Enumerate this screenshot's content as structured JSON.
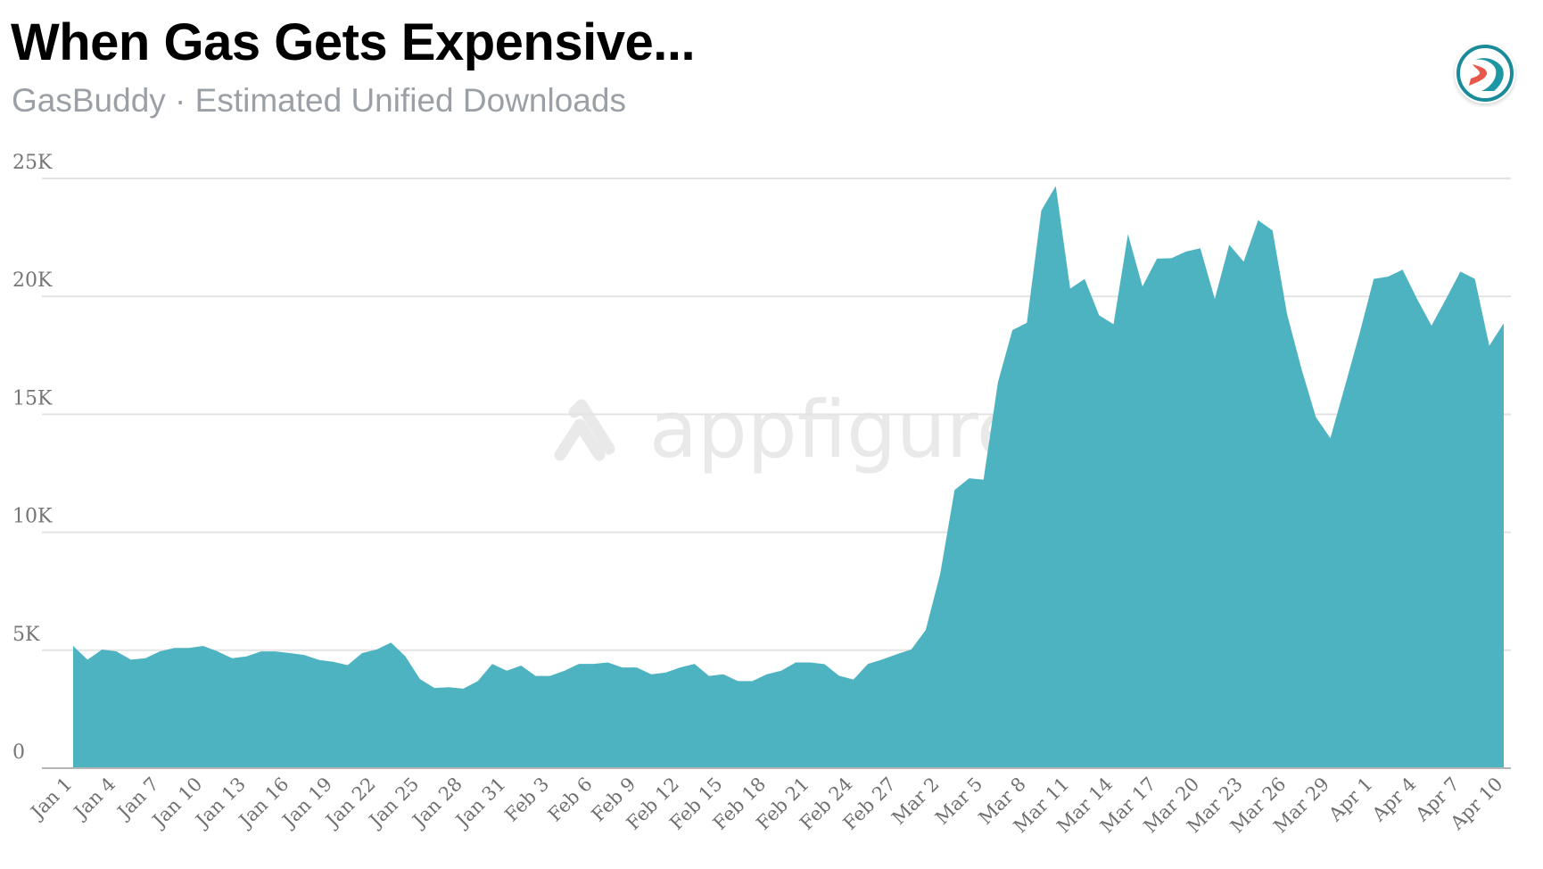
{
  "header": {
    "title": "When Gas Gets Expensive...",
    "subtitle": "GasBuddy · Estimated Unified Downloads"
  },
  "logo": {
    "icon": "gasbuddy-app-icon",
    "ring_color": "#1a8c99",
    "road_colors": [
      "#e8584a",
      "#1d97a3"
    ]
  },
  "watermark": {
    "text": "appfigures",
    "icon": "appfigures-logo-icon"
  },
  "colors": {
    "area_fill": "#4db3c0",
    "gridline": "#e3e3e3",
    "baseline": "#b5b5b5",
    "tick_text": "#757575"
  },
  "chart_data": {
    "type": "area",
    "title": "When Gas Gets Expensive...",
    "subtitle": "GasBuddy · Estimated Unified Downloads",
    "xlabel": "",
    "ylabel": "Estimated Unified Downloads",
    "ylim": [
      0,
      25000
    ],
    "yticks": [
      0,
      5000,
      10000,
      15000,
      20000,
      25000
    ],
    "ytick_labels": [
      "0",
      "5K",
      "10K",
      "15K",
      "20K",
      "25K"
    ],
    "grid": true,
    "legend": null,
    "x_tick_labels": [
      "Jan 1",
      "Jan 4",
      "Jan 7",
      "Jan 10",
      "Jan 13",
      "Jan 16",
      "Jan 19",
      "Jan 22",
      "Jan 25",
      "Jan 28",
      "Jan 31",
      "Feb 3",
      "Feb 6",
      "Feb 9",
      "Feb 12",
      "Feb 15",
      "Feb 18",
      "Feb 21",
      "Feb 24",
      "Feb 27",
      "Mar 2",
      "Mar 5",
      "Mar 8",
      "Mar 11",
      "Mar 14",
      "Mar 17",
      "Mar 20",
      "Mar 23",
      "Mar 26",
      "Mar 29",
      "Apr 1",
      "Apr 4",
      "Apr 7",
      "Apr 10"
    ],
    "x_tick_every": 3,
    "x_start": "Jan 1",
    "x_end": "Apr 10",
    "series": [
      {
        "name": "GasBuddy",
        "values": [
          5180,
          4600,
          5030,
          4950,
          4600,
          4660,
          4950,
          5100,
          5100,
          5180,
          4950,
          4660,
          4740,
          4950,
          4950,
          4880,
          4800,
          4590,
          4510,
          4370,
          4880,
          5030,
          5320,
          4740,
          3780,
          3400,
          3430,
          3370,
          3690,
          4420,
          4130,
          4350,
          3910,
          3910,
          4130,
          4420,
          4420,
          4480,
          4270,
          4270,
          3980,
          4050,
          4270,
          4420,
          3910,
          3980,
          3690,
          3690,
          3980,
          4130,
          4480,
          4480,
          4410,
          3920,
          3760,
          4420,
          4610,
          4830,
          5030,
          5860,
          8230,
          11790,
          12290,
          12230,
          16360,
          18570,
          18880,
          23640,
          24680,
          20330,
          20740,
          19200,
          18820,
          22640,
          20420,
          21600,
          21620,
          21900,
          22040,
          19890,
          22190,
          21470,
          23230,
          22790,
          19260,
          16930,
          14880,
          13990,
          16180,
          18380,
          20740,
          20840,
          21130,
          19890,
          18760,
          19890,
          21050,
          20740,
          17910,
          18860
        ]
      }
    ]
  }
}
